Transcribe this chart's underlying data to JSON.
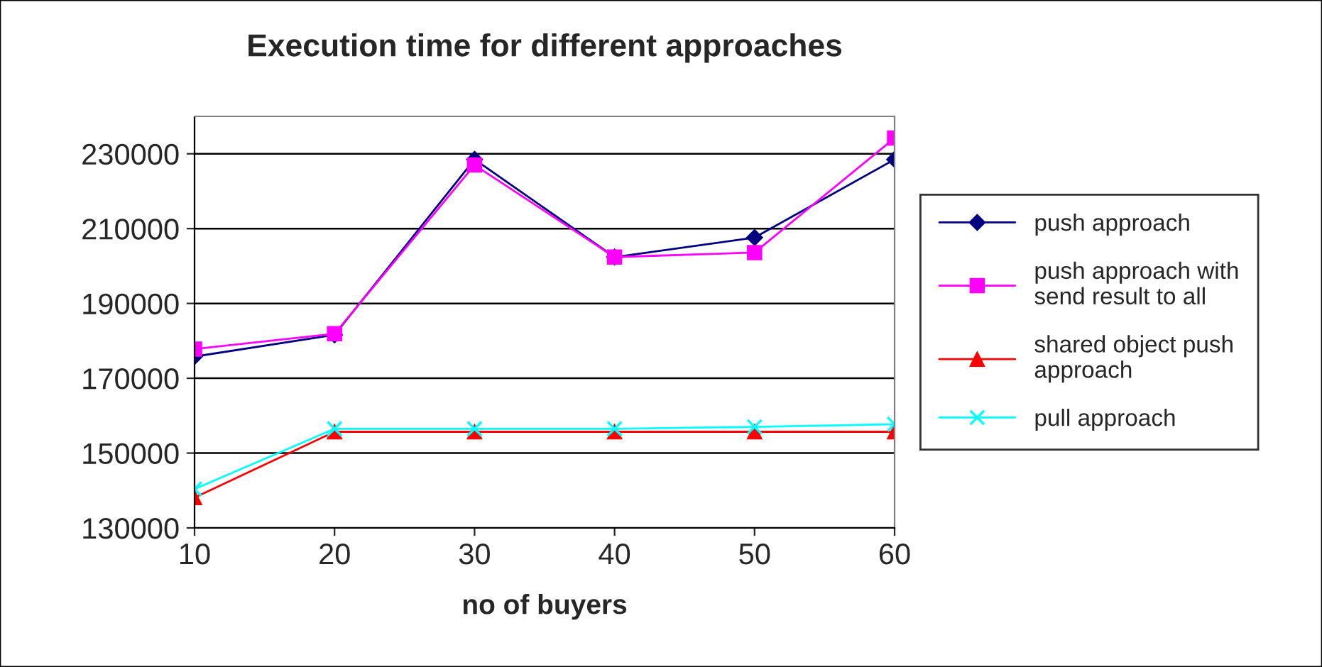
{
  "chart_data": {
    "type": "line",
    "title": "Execution time for different approaches",
    "xlabel": "no of buyers",
    "categories": [
      "10",
      "20",
      "30",
      "40",
      "50",
      "60"
    ],
    "series": [
      {
        "name": "push approach",
        "color": "#000080",
        "marker": "diamond",
        "values": [
          175800,
          181600,
          228500,
          202400,
          207600,
          228500
        ]
      },
      {
        "name": "push approach with send result to all",
        "color": "#ff00ff",
        "marker": "square",
        "values": [
          177800,
          181900,
          227000,
          202400,
          203600,
          234200
        ]
      },
      {
        "name": "shared object push approach",
        "color": "#ff0000",
        "marker": "triangle",
        "values": [
          138100,
          155700,
          155700,
          155700,
          155700,
          155700
        ]
      },
      {
        "name": "pull approach",
        "color": "#00ffff",
        "marker": "cross",
        "values": [
          140400,
          156500,
          156500,
          156500,
          157000,
          157700
        ]
      }
    ],
    "ylim": [
      130000,
      240000
    ],
    "yticks": [
      130000,
      150000,
      170000,
      190000,
      210000,
      230000
    ],
    "grid": "y",
    "legend": "right"
  }
}
